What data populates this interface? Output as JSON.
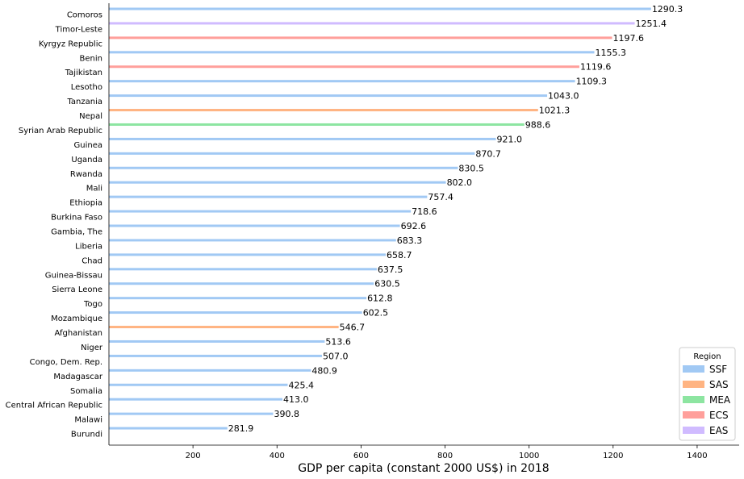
{
  "chart_data": {
    "type": "bar",
    "orientation": "horizontal",
    "title": "",
    "xlabel": "GDP per capita (constant 2000 US$) in 2018",
    "ylabel": "",
    "xlim": [
      0,
      1500
    ],
    "xticks": [
      200,
      400,
      600,
      800,
      1000,
      1200,
      1400
    ],
    "grid": false,
    "legend_title": "Region",
    "legend_position": "bottom-right",
    "regions": [
      {
        "name": "SSF",
        "color": "#a1c9f4"
      },
      {
        "name": "SAS",
        "color": "#ffb482"
      },
      {
        "name": "MEA",
        "color": "#8de5a1"
      },
      {
        "name": "ECS",
        "color": "#ff9f9b"
      },
      {
        "name": "EAS",
        "color": "#d0bbff"
      }
    ],
    "bars": [
      {
        "country": "Comoros",
        "value": 1290.3,
        "region": "SSF",
        "label": "1290.3"
      },
      {
        "country": "Timor-Leste",
        "value": 1251.4,
        "region": "EAS",
        "label": "1251.4"
      },
      {
        "country": "Kyrgyz Republic",
        "value": 1197.6,
        "region": "ECS",
        "label": "1197.6"
      },
      {
        "country": "Benin",
        "value": 1155.3,
        "region": "SSF",
        "label": "1155.3"
      },
      {
        "country": "Tajikistan",
        "value": 1119.6,
        "region": "ECS",
        "label": "1119.6"
      },
      {
        "country": "Lesotho",
        "value": 1109.3,
        "region": "SSF",
        "label": "1109.3"
      },
      {
        "country": "Tanzania",
        "value": 1043.0,
        "region": "SSF",
        "label": "1043.0"
      },
      {
        "country": "Nepal",
        "value": 1021.3,
        "region": "SAS",
        "label": "1021.3"
      },
      {
        "country": "Syrian Arab Republic",
        "value": 988.6,
        "region": "MEA",
        "label": "988.6"
      },
      {
        "country": "Guinea",
        "value": 921.0,
        "region": "SSF",
        "label": "921.0"
      },
      {
        "country": "Uganda",
        "value": 870.7,
        "region": "SSF",
        "label": "870.7"
      },
      {
        "country": "Rwanda",
        "value": 830.5,
        "region": "SSF",
        "label": "830.5"
      },
      {
        "country": "Mali",
        "value": 802.0,
        "region": "SSF",
        "label": "802.0"
      },
      {
        "country": "Ethiopia",
        "value": 757.4,
        "region": "SSF",
        "label": "757.4"
      },
      {
        "country": "Burkina Faso",
        "value": 718.6,
        "region": "SSF",
        "label": "718.6"
      },
      {
        "country": "Gambia, The",
        "value": 692.6,
        "region": "SSF",
        "label": "692.6"
      },
      {
        "country": "Liberia",
        "value": 683.3,
        "region": "SSF",
        "label": "683.3"
      },
      {
        "country": "Chad",
        "value": 658.7,
        "region": "SSF",
        "label": "658.7"
      },
      {
        "country": "Guinea-Bissau",
        "value": 637.5,
        "region": "SSF",
        "label": "637.5"
      },
      {
        "country": "Sierra Leone",
        "value": 630.5,
        "region": "SSF",
        "label": "630.5"
      },
      {
        "country": "Togo",
        "value": 612.8,
        "region": "SSF",
        "label": "612.8"
      },
      {
        "country": "Mozambique",
        "value": 602.5,
        "region": "SSF",
        "label": "602.5"
      },
      {
        "country": "Afghanistan",
        "value": 546.7,
        "region": "SAS",
        "label": "546.7"
      },
      {
        "country": "Niger",
        "value": 513.6,
        "region": "SSF",
        "label": "513.6"
      },
      {
        "country": "Congo, Dem. Rep.",
        "value": 507.0,
        "region": "SSF",
        "label": "507.0"
      },
      {
        "country": "Madagascar",
        "value": 480.9,
        "region": "SSF",
        "label": "480.9"
      },
      {
        "country": "Somalia",
        "value": 425.4,
        "region": "SSF",
        "label": "425.4"
      },
      {
        "country": "Central African Republic",
        "value": 413.0,
        "region": "SSF",
        "label": "413.0"
      },
      {
        "country": "Malawi",
        "value": 390.8,
        "region": "SSF",
        "label": "390.8"
      },
      {
        "country": "Burundi",
        "value": 281.9,
        "region": "SSF",
        "label": "281.9"
      }
    ]
  }
}
